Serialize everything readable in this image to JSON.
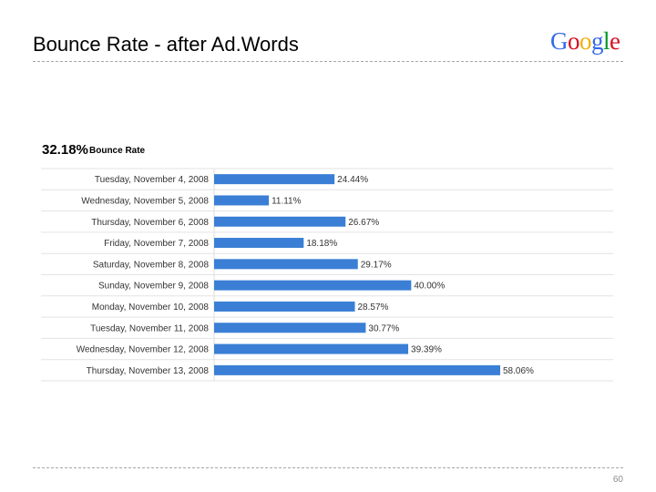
{
  "slide": {
    "title": "Bounce Rate - after Ad.Words",
    "logo_text": "Google",
    "logo_colors": [
      "#3369e8",
      "#d50f25",
      "#eeb211",
      "#3369e8",
      "#009925",
      "#d50f25"
    ],
    "page_number": "60"
  },
  "chart_data": {
    "type": "bar",
    "orientation": "horizontal",
    "summary_value": "32.18%",
    "summary_label": "Bounce Rate",
    "categories": [
      "Tuesday, November 4, 2008",
      "Wednesday, November 5, 2008",
      "Thursday, November 6, 2008",
      "Friday, November 7, 2008",
      "Saturday, November 8, 2008",
      "Sunday, November 9, 2008",
      "Monday, November 10, 2008",
      "Tuesday, November 11, 2008",
      "Wednesday, November 12, 2008",
      "Thursday, November 13, 2008"
    ],
    "values": [
      24.44,
      11.11,
      26.67,
      18.18,
      29.17,
      40.0,
      28.57,
      30.77,
      39.39,
      58.06
    ],
    "value_labels": [
      "24.44%",
      "11.11%",
      "26.67%",
      "18.18%",
      "29.17%",
      "40.00%",
      "28.57%",
      "30.77%",
      "39.39%",
      "58.06%"
    ],
    "bar_color": "#3a7fd5",
    "grid": true,
    "xlim": [
      0,
      58.06
    ]
  }
}
